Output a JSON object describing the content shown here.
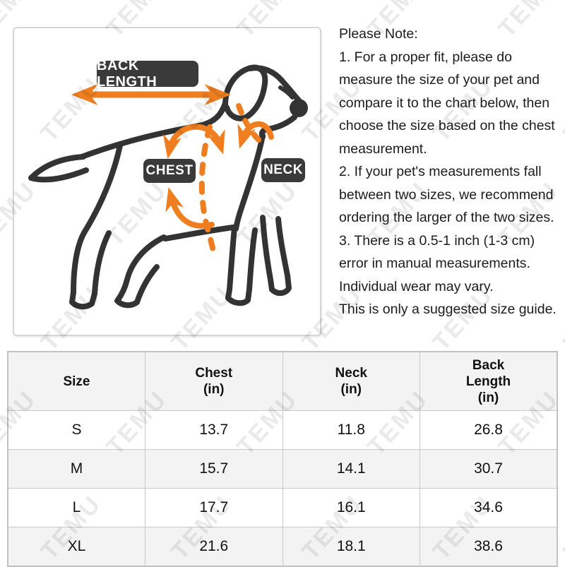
{
  "brand_watermark": {
    "text": "TEMU",
    "color": "#eaeaea"
  },
  "diagram": {
    "back_length_label": "BACK LENGTH",
    "chest_label": "CHEST",
    "neck_label": "NECK",
    "colors": {
      "outline": "#333333",
      "accent": "#ee7e1f",
      "label_bg": "#3a3a3a",
      "label_text": "#ffffff"
    }
  },
  "note": {
    "lines": [
      "Please Note:",
      "1. For a proper fit, please do",
      "measure the size of your pet and",
      "compare it to the chart below, then",
      "choose the size based on the chest",
      "measurement.",
      "2. If your pet's measurements fall",
      "between two sizes, we recommend",
      "ordering the larger of the two sizes.",
      "3. There is a 0.5-1 inch (1-3 cm)",
      "error in manual measurements.",
      "Individual wear may vary.",
      "This is only a suggested size guide."
    ]
  },
  "size_table": {
    "columns": [
      "Size",
      "Chest\n(in)",
      "Neck\n(in)",
      "Back\nLength\n(in)"
    ],
    "rows": [
      {
        "size": "S",
        "chest": "13.7",
        "neck": "11.8",
        "back_length": "26.8"
      },
      {
        "size": "M",
        "chest": "15.7",
        "neck": "14.1",
        "back_length": "30.7"
      },
      {
        "size": "L",
        "chest": "17.7",
        "neck": "16.1",
        "back_length": "34.6"
      },
      {
        "size": "XL",
        "chest": "21.6",
        "neck": "18.1",
        "back_length": "38.6"
      }
    ]
  }
}
